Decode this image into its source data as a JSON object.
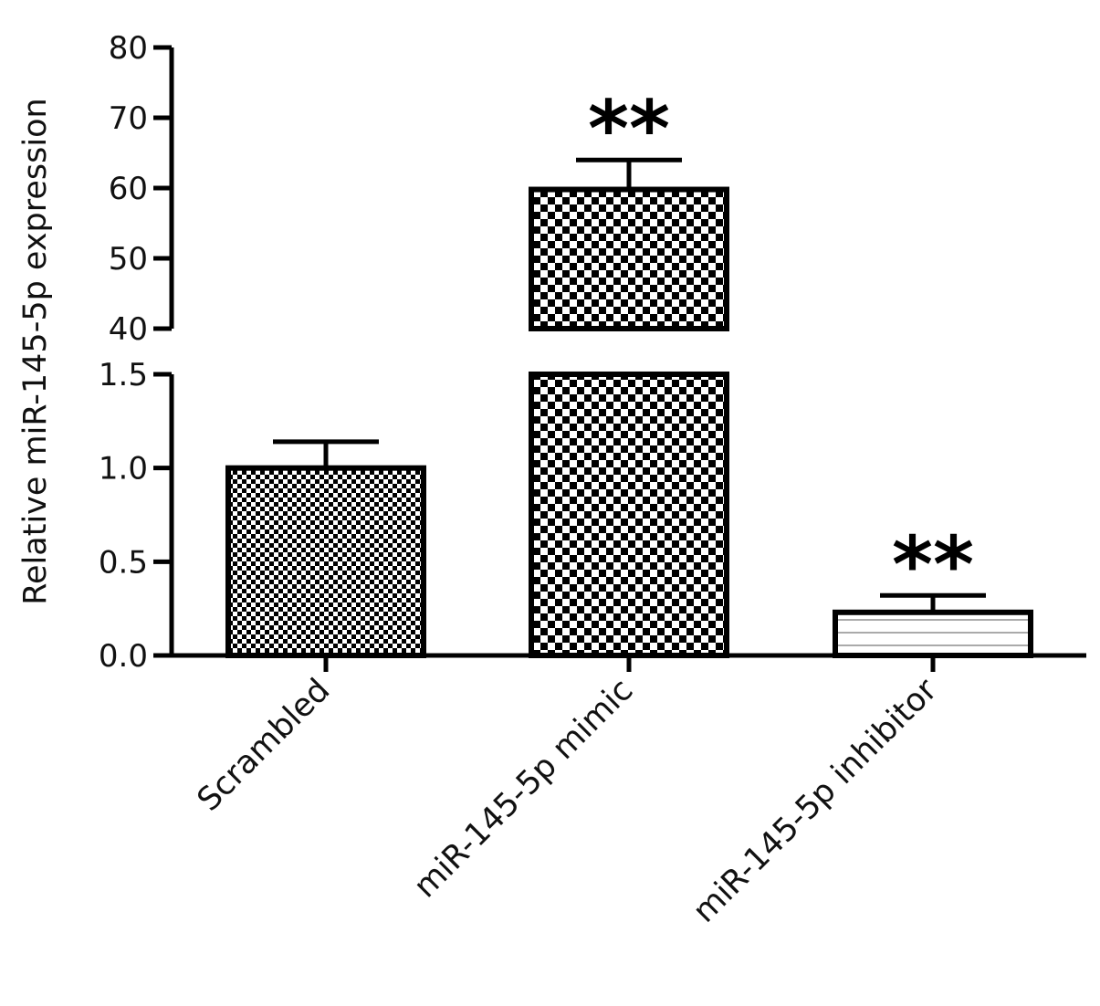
{
  "chart_data": {
    "type": "bar",
    "ylabel": "Relative  miR-145-5p expression",
    "categories": [
      "Scrambled",
      "miR-145-5p mimic",
      "miR-145-5p inhibitor"
    ],
    "series": [
      {
        "values": [
          1.0,
          59.8,
          0.23
        ],
        "errors": [
          0.14,
          4.2,
          0.09
        ]
      }
    ],
    "significance": [
      "",
      "**",
      "**"
    ],
    "y_axis_broken": true,
    "y_segments": [
      {
        "ylim": [
          0,
          1.5
        ],
        "ticks": [
          "0.0",
          "0.5",
          "1.0",
          "1.5"
        ]
      },
      {
        "ylim": [
          40,
          80
        ],
        "ticks": [
          "40",
          "50",
          "60",
          "70",
          "80"
        ]
      }
    ],
    "bar_patterns": [
      "fine checkerboard",
      "coarse checkerboard",
      "horizontal lines"
    ],
    "grid": false
  }
}
